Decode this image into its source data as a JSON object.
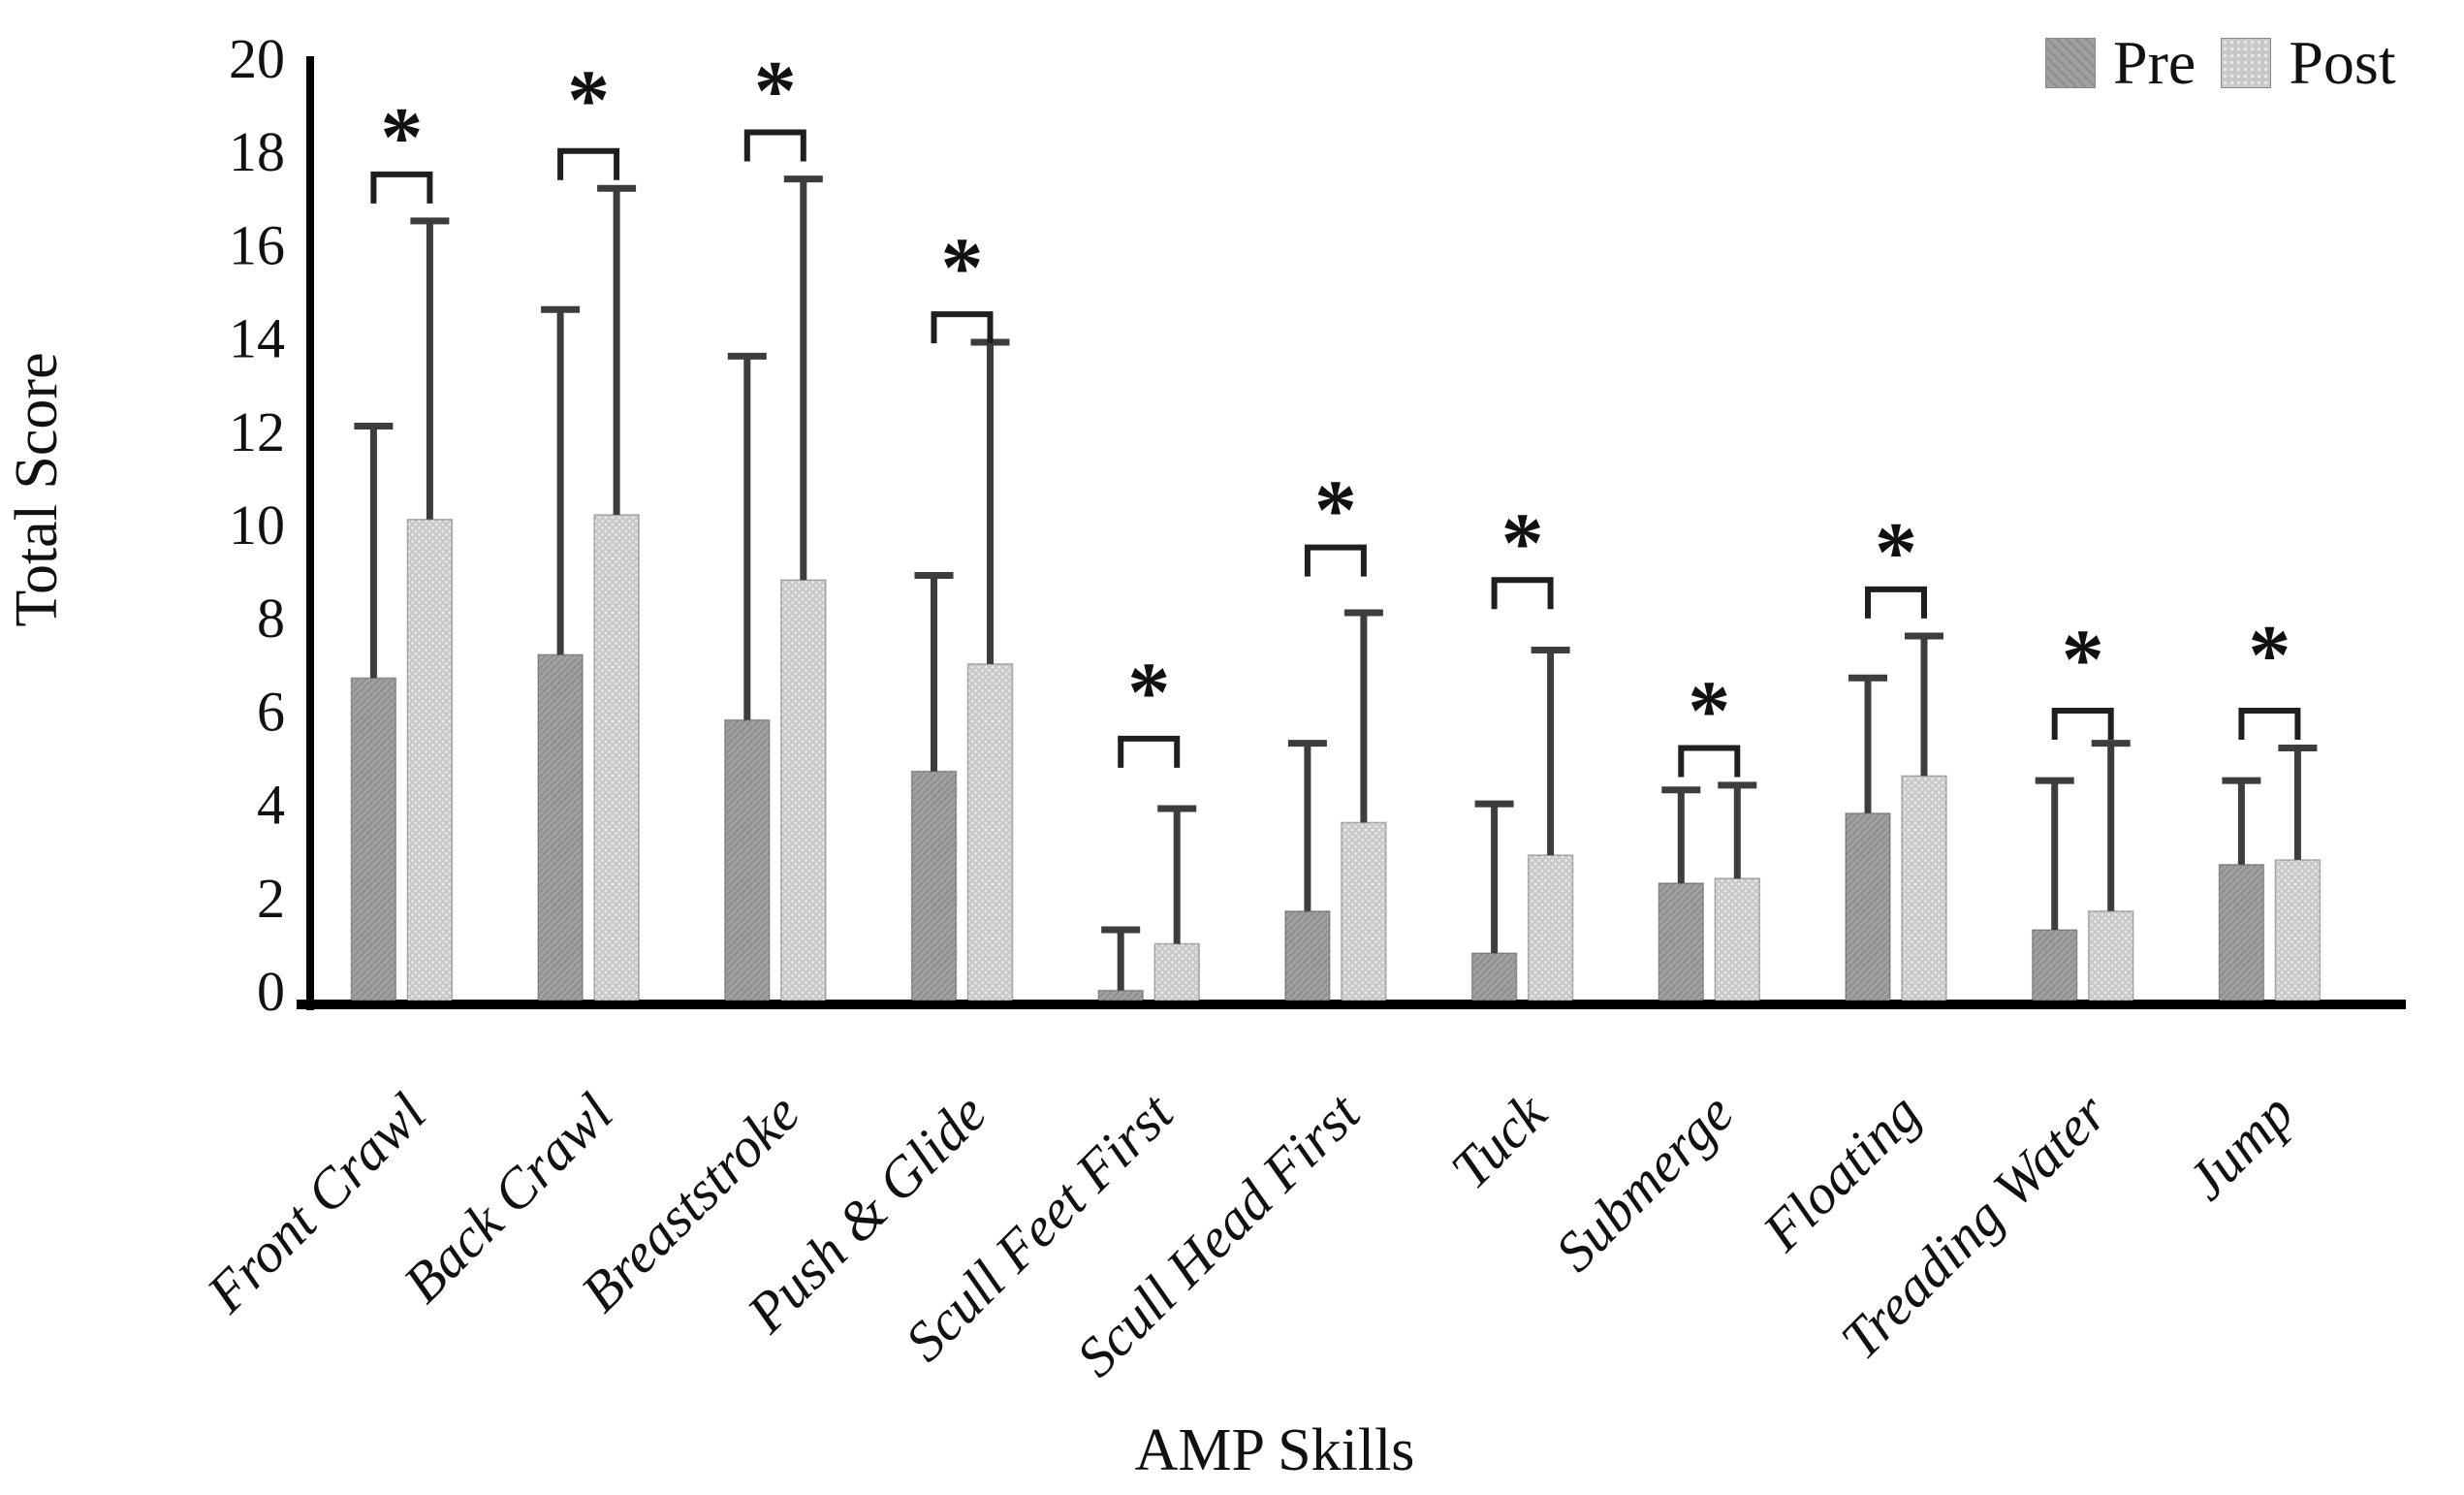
{
  "figure": {
    "background": "#ffffff"
  },
  "legend": {
    "items": [
      {
        "label": "Pre",
        "color": "#a0a0a0"
      },
      {
        "label": "Post",
        "color": "#c9c9c9"
      }
    ]
  },
  "chart_data": {
    "type": "bar",
    "title": "",
    "xlabel": "AMP Skills",
    "ylabel": "Total Score",
    "ylim": [
      0,
      20
    ],
    "ytick_step": 2,
    "grid": false,
    "legend_position": "top-right",
    "error_bars": "upper-only",
    "significance_marker": "*",
    "categories": [
      "Front Crawl",
      "Back Crawl",
      "Breaststroke",
      "Push & Glide",
      "Scull Feet First",
      "Scull Head First",
      "Tuck",
      "Submerge",
      "Floating",
      "Treading Water",
      "Jump"
    ],
    "series": [
      {
        "name": "Pre",
        "color": "#a0a0a0",
        "values": [
          7.0,
          7.5,
          6.1,
          5.0,
          0.3,
          2.0,
          1.1,
          2.6,
          4.1,
          1.6,
          3.0
        ],
        "error_up": [
          5.4,
          7.4,
          7.8,
          4.2,
          1.3,
          3.6,
          3.2,
          2.0,
          2.9,
          3.2,
          1.8
        ]
      },
      {
        "name": "Post",
        "color": "#c9c9c9",
        "values": [
          10.4,
          10.5,
          9.1,
          7.3,
          1.3,
          3.9,
          3.2,
          2.7,
          4.9,
          2.0,
          3.1
        ],
        "error_up": [
          6.4,
          7.0,
          8.6,
          6.9,
          2.9,
          4.5,
          4.4,
          2.0,
          3.0,
          3.6,
          2.4
        ]
      }
    ],
    "significance": {
      "marker": "*",
      "bracket_y": [
        17.8,
        18.3,
        18.7,
        14.8,
        5.7,
        9.8,
        9.1,
        5.5,
        8.9,
        6.3,
        6.3
      ],
      "star_y": [
        18.9,
        19.7,
        19.9,
        16.1,
        7.0,
        10.9,
        10.2,
        6.6,
        10.0,
        7.7,
        7.8
      ]
    },
    "colors": {
      "axis": "#000000",
      "error_bar": "#3d3d3d",
      "bracket": "#1f1f1f",
      "text": "#111111"
    }
  }
}
